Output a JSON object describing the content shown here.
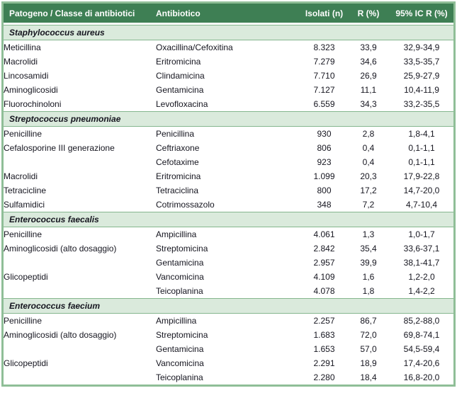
{
  "colors": {
    "header_bg": "#3e7f54",
    "header_text": "#ffffff",
    "section_bg": "#daeadc",
    "section_border": "#85b68e",
    "outer_border": "#8fbe97",
    "text": "#15151f"
  },
  "table": {
    "headers": [
      "Patogeno / Classe di antibiotici",
      "Antibiotico",
      "Isolati (n)",
      "R (%)",
      "95% IC R (%)"
    ],
    "sections": [
      {
        "title": "Staphylococcus aureus",
        "rows": [
          [
            "Meticillina",
            "Oxacillina/Cefoxitina",
            "8.323",
            "33,9",
            "32,9-34,9"
          ],
          [
            "Macrolidi",
            "Eritromicina",
            "7.279",
            "34,6",
            "33,5-35,7"
          ],
          [
            "Lincosamidi",
            "Clindamicina",
            "7.710",
            "26,9",
            "25,9-27,9"
          ],
          [
            "Aminoglicosidi",
            "Gentamicina",
            "7.127",
            "11,1",
            "10,4-11,9"
          ],
          [
            "Fluorochinoloni",
            "Levofloxacina",
            "6.559",
            "34,3",
            "33,2-35,5"
          ]
        ]
      },
      {
        "title": "Streptococcus pneumoniae",
        "rows": [
          [
            "Penicilline",
            "Penicillina",
            "930",
            "2,8",
            "1,8-4,1"
          ],
          [
            "Cefalosporine III generazione",
            "Ceftriaxone",
            "806",
            "0,4",
            "0,1-1,1"
          ],
          [
            "",
            "Cefotaxime",
            "923",
            "0,4",
            "0,1-1,1"
          ],
          [
            "Macrolidi",
            "Eritromicina",
            "1.099",
            "20,3",
            "17,9-22,8"
          ],
          [
            "Tetracicline",
            "Tetraciclina",
            "800",
            "17,2",
            "14,7-20,0"
          ],
          [
            "Sulfamidici",
            "Cotrimossazolo",
            "348",
            "7,2",
            "4,7-10,4"
          ]
        ]
      },
      {
        "title": "Enterococcus faecalis",
        "rows": [
          [
            "Penicilline",
            "Ampicillina",
            "4.061",
            "1,3",
            "1,0-1,7"
          ],
          [
            "Aminoglicosidi (alto dosaggio)",
            "Streptomicina",
            "2.842",
            "35,4",
            "33,6-37,1"
          ],
          [
            "",
            "Gentamicina",
            "2.957",
            "39,9",
            "38,1-41,7"
          ],
          [
            "Glicopeptidi",
            "Vancomicina",
            "4.109",
            "1,6",
            "1,2-2,0"
          ],
          [
            "",
            "Teicoplanina",
            "4.078",
            "1,8",
            "1,4-2,2"
          ]
        ]
      },
      {
        "title": "Enterococcus faecium",
        "rows": [
          [
            "Penicilline",
            "Ampicillina",
            "2.257",
            "86,7",
            "85,2-88,0"
          ],
          [
            "Aminoglicosidi (alto dosaggio)",
            "Streptomicina",
            "1.683",
            "72,0",
            "69,8-74,1"
          ],
          [
            "",
            "Gentamicina",
            "1.653",
            "57,0",
            "54,5-59,4"
          ],
          [
            "Glicopeptidi",
            "Vancomicina",
            "2.291",
            "18,9",
            "17,4-20,6"
          ],
          [
            "",
            "Teicoplanina",
            "2.280",
            "18,4",
            "16,8-20,0"
          ]
        ]
      }
    ]
  }
}
